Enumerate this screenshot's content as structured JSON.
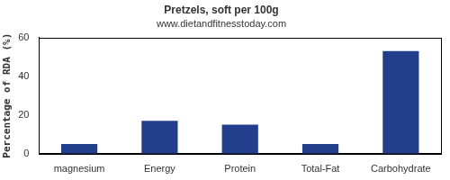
{
  "chart_data": {
    "type": "bar",
    "title": "Pretzels, soft per 100g",
    "subtitle": "www.dietandfitnesstoday.com",
    "y_label": "Percentage of RDA (%)",
    "categories": [
      "magnesium",
      "Energy",
      "Protein",
      "Total-Fat",
      "Carbohydrate"
    ],
    "values": [
      5,
      17,
      15,
      5,
      53
    ],
    "color": "#233e8b",
    "ylim": [
      0,
      60
    ],
    "yticks": [
      0,
      20,
      40,
      60
    ],
    "grid": false
  }
}
